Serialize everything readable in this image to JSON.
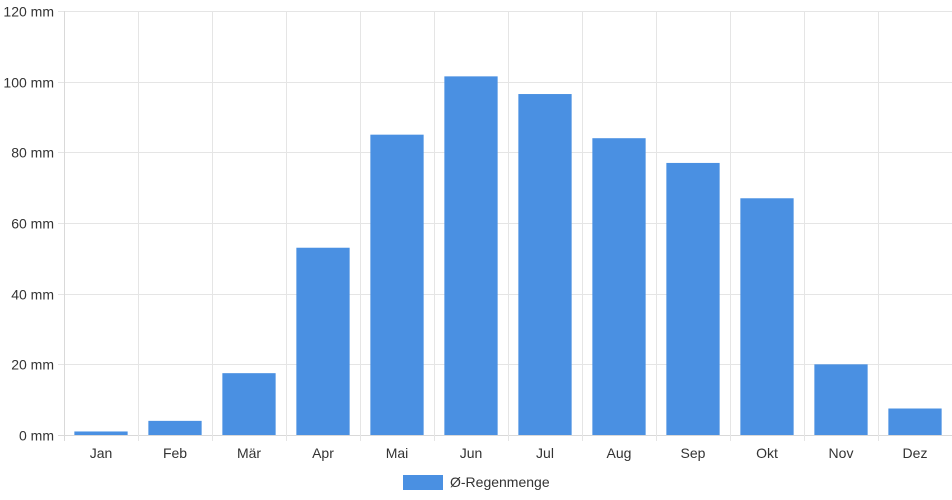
{
  "chart_data": {
    "type": "bar",
    "categories": [
      "Jan",
      "Feb",
      "Mär",
      "Apr",
      "Mai",
      "Jun",
      "Jul",
      "Aug",
      "Sep",
      "Okt",
      "Nov",
      "Dez"
    ],
    "series": [
      {
        "name": "Ø-Regenmenge",
        "values": [
          1,
          4,
          17.5,
          53,
          85,
          101.5,
          96.5,
          84,
          77,
          67,
          20,
          7.5
        ],
        "color": "#4a90e2"
      }
    ],
    "y_ticks": [
      "0 mm",
      "20 mm",
      "40 mm",
      "60 mm",
      "80 mm",
      "100 mm",
      "120 mm"
    ],
    "ylim": [
      0,
      120
    ],
    "grid": true,
    "legend": "bottom-center"
  }
}
